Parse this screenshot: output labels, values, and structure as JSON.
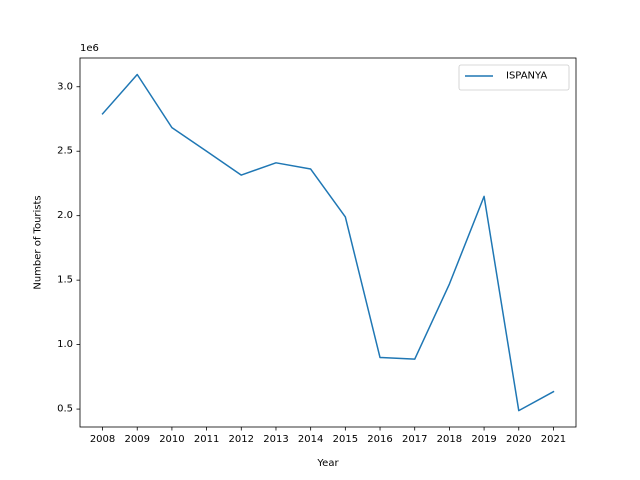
{
  "chart_data": {
    "type": "line",
    "xlabel": "Year",
    "ylabel": "Number of Tourists",
    "offset_text": "1e6",
    "x": [
      "2008",
      "2009",
      "2010",
      "2011",
      "2012",
      "2013",
      "2014",
      "2015",
      "2016",
      "2017",
      "2018",
      "2019",
      "2020",
      "2021"
    ],
    "series": [
      {
        "name": "ISPANYA",
        "color": "#1f77b4",
        "values": [
          2790000,
          3095000,
          2683000,
          2500000,
          2315000,
          2410000,
          2362000,
          1990000,
          900000,
          887000,
          1470000,
          2150000,
          488000,
          635000
        ]
      }
    ],
    "ylim": [
      0.361,
      3.223
    ],
    "yscale": 1000000,
    "yticks": [
      0.5,
      1.0,
      1.5,
      2.0,
      2.5,
      3.0
    ],
    "ytick_labels": [
      "0.5",
      "1.0",
      "1.5",
      "2.0",
      "2.5",
      "3.0"
    ],
    "legend_position": "top-right",
    "grid": false
  }
}
